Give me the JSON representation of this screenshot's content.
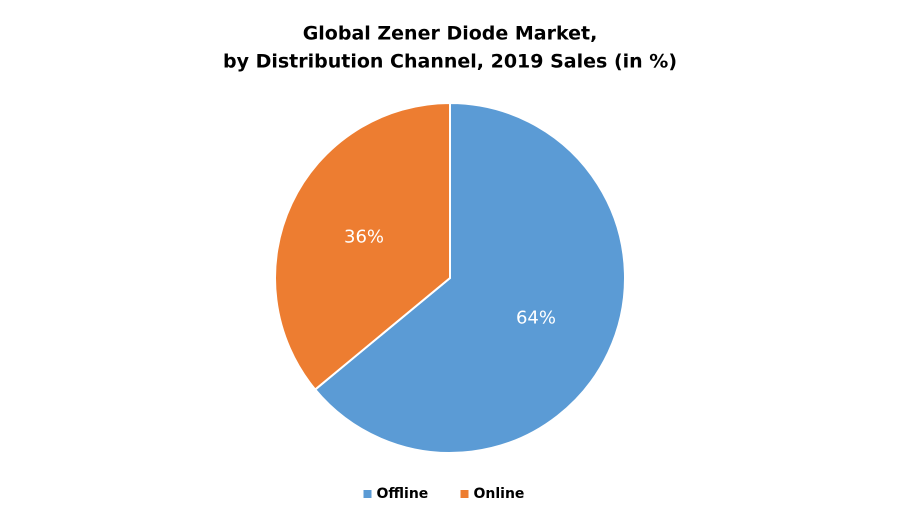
{
  "chart_data": {
    "type": "pie",
    "title": [
      "Global Zener Diode Market,",
      "by Distribution Channel, 2019 Sales (in %)"
    ],
    "categories": [
      "Offline",
      "Online"
    ],
    "values": [
      64,
      36
    ],
    "value_labels": [
      "64%",
      "36%"
    ],
    "colors": [
      "#5b9bd5",
      "#ed7d31"
    ],
    "legend": "bottom"
  }
}
